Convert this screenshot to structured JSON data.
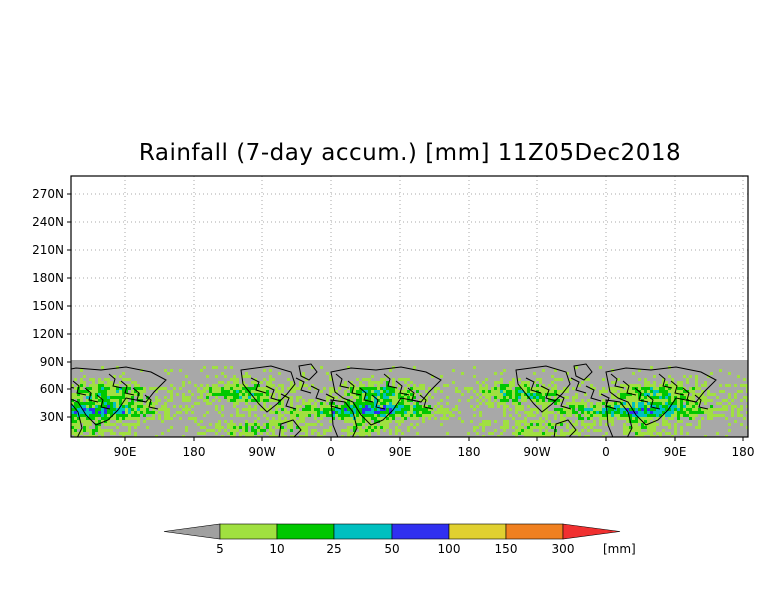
{
  "title": "Rainfall (7-day accum.) [mm] 11Z05Dec2018",
  "map": {
    "y_ticks": [
      "270N",
      "240N",
      "210N",
      "180N",
      "150N",
      "120N",
      "90N",
      "60N",
      "30N"
    ],
    "x_ticks": [
      "90E",
      "180",
      "90W",
      "0",
      "90E",
      "180",
      "90W",
      "0",
      "90E",
      "180"
    ],
    "grid": "dotted",
    "missing_color": "#a8a8a8",
    "land_outline_color": "#000000"
  },
  "colorbar": {
    "colors": [
      "#a0a0a0",
      "#a0e040",
      "#00c800",
      "#00c0c0",
      "#3030f0",
      "#e0d030",
      "#f08020",
      "#f03030"
    ],
    "labels": [
      "5",
      "10",
      "25",
      "50",
      "100",
      "150",
      "300"
    ],
    "unit": "[mm]"
  }
}
